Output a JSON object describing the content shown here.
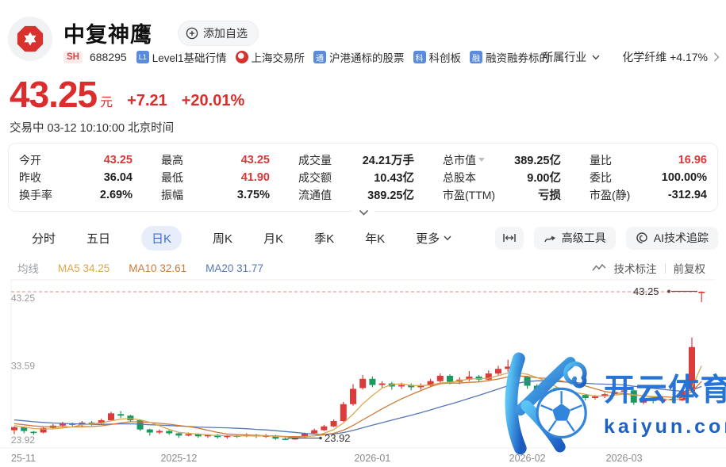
{
  "header": {
    "title": "中复神鹰",
    "add_watchlist": "添加自选",
    "exchange_badge": "SH",
    "code": "688295",
    "tags": [
      {
        "icon": "L1",
        "label": "Level1基础行情"
      },
      {
        "icon": "sse",
        "label": "上海交易所"
      },
      {
        "icon": "通",
        "label": "沪港通标的股票"
      },
      {
        "icon": "科",
        "label": "科创板"
      },
      {
        "icon": "融",
        "label": "融资融券标的"
      }
    ],
    "industry_label": "所属行业",
    "industry_value": "化学纤维 +4.17%"
  },
  "quote": {
    "price": "43.25",
    "unit": "元",
    "change": "+7.21",
    "change_pct": "+20.01%",
    "status_line": "交易中 03-12 10:10:00 北京时间"
  },
  "stats": {
    "cells": [
      {
        "label": "今开",
        "value": "43.25",
        "red": true
      },
      {
        "label": "最高",
        "value": "43.25",
        "red": true
      },
      {
        "label": "成交量",
        "value": "24.21万手"
      },
      {
        "label": "总市值",
        "value": "389.25亿",
        "dropdown": true
      },
      {
        "label": "量比",
        "value": "16.96",
        "red": true
      },
      {
        "label": "昨收",
        "value": "36.04"
      },
      {
        "label": "最低",
        "value": "41.90",
        "red": true
      },
      {
        "label": "成交额",
        "value": "10.43亿"
      },
      {
        "label": "总股本",
        "value": "9.00亿"
      },
      {
        "label": "委比",
        "value": "100.00%"
      },
      {
        "label": "换手率",
        "value": "2.69%"
      },
      {
        "label": "振幅",
        "value": "3.75%"
      },
      {
        "label": "流通值",
        "value": "389.25亿"
      },
      {
        "label": "市盈(TTM)",
        "value": "亏损"
      },
      {
        "label": "市盈(静)",
        "value": "-312.94"
      }
    ]
  },
  "tabs": {
    "items": [
      "分时",
      "五日",
      "日K",
      "周K",
      "月K",
      "季K",
      "年K"
    ],
    "active": "日K",
    "more_label": "更多",
    "tools": [
      "高级工具",
      "AI技术追踪"
    ]
  },
  "ma_legend": {
    "prefix": "均线",
    "items": [
      {
        "name": "MA5",
        "value": "34.25"
      },
      {
        "name": "MA10",
        "value": "32.61"
      },
      {
        "name": "MA20",
        "value": "31.77"
      }
    ],
    "annotate_label": "技术标注",
    "adjust_label": "前复权"
  },
  "watermark": {
    "line1": "开云体育",
    "line2": "kaiyun.com"
  },
  "colors": {
    "up": "#dd3b3b",
    "down": "#1a9a60",
    "ma5": "#d9a84e",
    "ma10": "#cd7a35",
    "ma20": "#5577b5",
    "limit_line": "#e58a8a",
    "axis_text": "#999999",
    "price_red": "#dd2c2c",
    "active_tab": "#3b6fd0"
  },
  "chart_data": {
    "type": "candlestick",
    "title": "中复神鹰 日K 前复权",
    "ylim": [
      23.92,
      43.25
    ],
    "y_ticks": [
      "43.25",
      "33.59",
      "23.92"
    ],
    "x_labels": [
      {
        "index": 0,
        "label": "25-11"
      },
      {
        "index": 17,
        "label": "2025-12"
      },
      {
        "index": 37,
        "label": "2026-01"
      },
      {
        "index": 53,
        "label": "2026-02"
      },
      {
        "index": 63,
        "label": "2026-03"
      }
    ],
    "limit_line": {
      "price": 43.25,
      "label": "43.25"
    },
    "low_annotation": {
      "index": 28,
      "price": 23.92,
      "label": "23.92"
    },
    "high_annotation": {
      "price": 43.25,
      "label": "43.25"
    },
    "ma_displayed": {
      "MA5": 34.25,
      "MA10": 32.61,
      "MA20": 31.77
    },
    "ma_seed": [
      27.5,
      27.4,
      27.3,
      27.2,
      27.1,
      27.0,
      26.9,
      26.8,
      26.7,
      26.6,
      26.5,
      26.4,
      26.3,
      26.2,
      26.1,
      26.0,
      25.9,
      25.8,
      25.7
    ],
    "candles_ochl": [
      [
        25.2,
        25.6,
        24.7,
        25.7
      ],
      [
        25.6,
        25.1,
        24.8,
        25.7
      ],
      [
        25.0,
        24.9,
        24.6,
        25.1
      ],
      [
        24.9,
        25.5,
        24.8,
        25.6
      ],
      [
        25.5,
        25.8,
        25.3,
        26.0
      ],
      [
        25.8,
        26.1,
        25.6,
        26.3
      ],
      [
        26.1,
        25.9,
        25.7,
        26.2
      ],
      [
        25.9,
        26.2,
        25.7,
        26.4
      ],
      [
        26.2,
        26.1,
        25.8,
        26.4
      ],
      [
        26.1,
        26.5,
        26.0,
        26.7
      ],
      [
        26.5,
        27.4,
        26.4,
        27.6
      ],
      [
        27.3,
        27.1,
        26.8,
        27.7
      ],
      [
        27.1,
        26.5,
        26.3,
        27.2
      ],
      [
        26.5,
        25.3,
        25.1,
        26.6
      ],
      [
        25.3,
        24.9,
        24.5,
        25.4
      ],
      [
        24.9,
        25.1,
        24.7,
        25.3
      ],
      [
        25.1,
        24.8,
        24.6,
        25.2
      ],
      [
        24.8,
        24.5,
        24.2,
        24.9
      ],
      [
        24.5,
        24.7,
        24.4,
        24.9
      ],
      [
        24.7,
        24.4,
        24.2,
        24.8
      ],
      [
        24.4,
        24.6,
        24.2,
        24.7
      ],
      [
        24.6,
        24.3,
        24.1,
        24.7
      ],
      [
        24.3,
        24.5,
        24.1,
        24.6
      ],
      [
        24.5,
        24.4,
        24.2,
        24.6
      ],
      [
        24.4,
        24.6,
        24.3,
        24.8
      ],
      [
        24.6,
        24.4,
        24.2,
        24.7
      ],
      [
        24.4,
        24.5,
        24.2,
        24.7
      ],
      [
        24.5,
        24.1,
        23.95,
        24.6
      ],
      [
        24.1,
        24.0,
        23.92,
        24.25
      ],
      [
        24.0,
        24.3,
        23.95,
        24.4
      ],
      [
        24.3,
        24.8,
        24.2,
        24.9
      ],
      [
        24.8,
        25.2,
        24.7,
        25.4
      ],
      [
        25.2,
        25.7,
        25.1,
        25.9
      ],
      [
        25.7,
        26.4,
        25.6,
        26.6
      ],
      [
        26.4,
        28.6,
        26.3,
        28.9
      ],
      [
        28.6,
        30.6,
        28.4,
        31.2
      ],
      [
        30.7,
        31.9,
        30.5,
        32.4
      ],
      [
        31.9,
        31.1,
        30.8,
        32.2
      ],
      [
        31.1,
        31.3,
        30.7,
        31.6
      ],
      [
        31.3,
        30.9,
        30.5,
        31.5
      ],
      [
        30.9,
        31.1,
        30.6,
        31.4
      ],
      [
        31.1,
        30.8,
        30.4,
        31.3
      ],
      [
        30.8,
        31.0,
        30.5,
        31.3
      ],
      [
        31.0,
        31.6,
        30.8,
        31.9
      ],
      [
        31.6,
        32.3,
        31.4,
        32.6
      ],
      [
        32.3,
        31.5,
        31.2,
        32.5
      ],
      [
        31.5,
        31.8,
        31.2,
        32.1
      ],
      [
        31.8,
        32.2,
        31.6,
        32.9
      ],
      [
        32.2,
        31.8,
        31.5,
        32.4
      ],
      [
        31.8,
        32.6,
        31.6,
        33.0
      ],
      [
        32.6,
        33.2,
        32.3,
        33.6
      ],
      [
        33.2,
        33.5,
        32.8,
        34.4
      ],
      [
        33.5,
        32.2,
        31.8,
        33.8
      ],
      [
        32.2,
        31.0,
        30.6,
        32.3
      ],
      [
        31.0,
        30.5,
        30.1,
        31.2
      ],
      [
        30.5,
        30.7,
        30.2,
        30.9
      ],
      [
        30.7,
        29.9,
        29.6,
        30.8
      ],
      [
        29.9,
        29.6,
        29.3,
        30.1
      ],
      [
        29.6,
        29.8,
        29.4,
        30.0
      ],
      [
        29.8,
        29.4,
        29.1,
        29.9
      ],
      [
        29.4,
        29.6,
        29.2,
        29.8
      ],
      [
        29.6,
        29.9,
        29.4,
        30.1
      ],
      [
        29.9,
        30.2,
        29.7,
        30.4
      ],
      [
        30.2,
        30.4,
        29.9,
        30.6
      ],
      [
        30.4,
        28.8,
        28.5,
        30.5
      ],
      [
        28.8,
        29.2,
        28.6,
        29.4
      ],
      [
        29.2,
        29.0,
        28.7,
        29.4
      ],
      [
        29.0,
        29.3,
        28.8,
        29.5
      ],
      [
        29.3,
        29.1,
        28.8,
        29.6
      ],
      [
        29.1,
        30.3,
        29.0,
        30.5
      ],
      [
        30.3,
        36.04,
        30.1,
        37.3
      ],
      [
        43.25,
        43.25,
        41.9,
        43.25
      ]
    ]
  }
}
